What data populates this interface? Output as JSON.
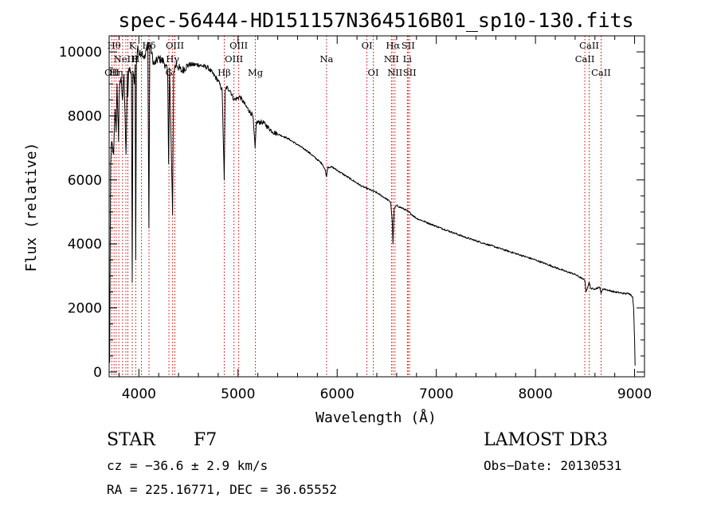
{
  "chart_data": {
    "type": "line",
    "title": "spec-56444-HD151157N364516B01_sp10-130.fits",
    "xlabel": "Wavelength (Å)",
    "ylabel": "Flux (relative)",
    "xlim": [
      3700,
      9100
    ],
    "ylim": [
      -150,
      10500
    ],
    "x_ticks": [
      4000,
      5000,
      6000,
      7000,
      8000,
      9000
    ],
    "y_ticks": [
      0,
      2000,
      4000,
      6000,
      8000,
      10000
    ],
    "series": [
      {
        "name": "flux",
        "x": [
          3700,
          3705,
          3715,
          3725,
          3735,
          3745,
          3760,
          3770,
          3780,
          3795,
          3800,
          3810,
          3820,
          3835,
          3850,
          3870,
          3885,
          3889,
          3895,
          3910,
          3925,
          3933,
          3940,
          3955,
          3962,
          3968,
          3975,
          3990,
          4000,
          4030,
          4060,
          4090,
          4101,
          4110,
          4150,
          4200,
          4250,
          4290,
          4300,
          4310,
          4340,
          4350,
          4360,
          4380,
          4430,
          4500,
          4600,
          4700,
          4800,
          4840,
          4861,
          4870,
          4880,
          4920,
          4960,
          5020,
          5080,
          5150,
          5172,
          5185,
          5250,
          5350,
          5500,
          5700,
          5850,
          5880,
          5893,
          5905,
          5950,
          6100,
          6250,
          6400,
          6500,
          6540,
          6556,
          6563,
          6575,
          6600,
          6700,
          6800,
          7000,
          7300,
          7600,
          8000,
          8300,
          8400,
          8480,
          8500,
          8510,
          8542,
          8560,
          8600,
          8650,
          8662,
          8680,
          8800,
          8900,
          8950,
          8980,
          8990,
          9000,
          9005
        ],
        "y": [
          2900,
          300,
          6500,
          7200,
          7000,
          6800,
          8200,
          7500,
          9000,
          7200,
          8400,
          9100,
          9200,
          8500,
          9300,
          6800,
          9400,
          8600,
          9300,
          9500,
          9200,
          2800,
          9400,
          9000,
          9600,
          3500,
          9600,
          10200,
          9900,
          10000,
          9800,
          10300,
          4500,
          10300,
          9600,
          9800,
          9700,
          9400,
          6500,
          9500,
          4900,
          9300,
          9500,
          9600,
          9400,
          9600,
          9600,
          9500,
          9100,
          8800,
          6000,
          8700,
          8900,
          8800,
          8500,
          8600,
          8300,
          8000,
          7000,
          7800,
          7800,
          7500,
          7300,
          6900,
          6500,
          6300,
          6100,
          6400,
          6400,
          6100,
          5800,
          5600,
          5400,
          5300,
          4700,
          4000,
          5100,
          5200,
          5050,
          4800,
          4550,
          4200,
          3900,
          3500,
          3150,
          3050,
          2900,
          2850,
          2500,
          2800,
          2600,
          2600,
          2650,
          2450,
          2600,
          2500,
          2450,
          2450,
          2350,
          2000,
          1000,
          200
        ]
      }
    ],
    "line_markers": [
      {
        "x": 3727,
        "label": "OII",
        "row": 3
      },
      {
        "x": 3750,
        "label": "Hθ",
        "row": 1
      },
      {
        "x": 3771,
        "label": "Hη",
        "row": 3
      },
      {
        "x": 3798,
        "label": "",
        "row": 0
      },
      {
        "x": 3835,
        "label": "",
        "row": 0
      },
      {
        "x": 3869,
        "label": "NeIII",
        "row": 2
      },
      {
        "x": 3889,
        "label": "",
        "row": 0
      },
      {
        "x": 3933,
        "label": "K",
        "row": 1
      },
      {
        "x": 3968,
        "label": "H",
        "row": 2
      },
      {
        "x": 4026,
        "label": "",
        "row": 0
      },
      {
        "x": 4102,
        "label": "Hδ",
        "row": 1
      },
      {
        "x": 4303,
        "label": "G",
        "row": 3
      },
      {
        "x": 4340,
        "label": "Hγ",
        "row": 2
      },
      {
        "x": 4363,
        "label": "OIII",
        "row": 1
      },
      {
        "x": 4861,
        "label": "Hβ",
        "row": 3
      },
      {
        "x": 4959,
        "label": "OIII",
        "row": 2
      },
      {
        "x": 5007,
        "label": "OIII",
        "row": 1
      },
      {
        "x": 5175,
        "label": "Mg",
        "row": 3
      },
      {
        "x": 5893,
        "label": "Na",
        "row": 2
      },
      {
        "x": 6300,
        "label": "OI",
        "row": 1
      },
      {
        "x": 6364,
        "label": "OI",
        "row": 3
      },
      {
        "x": 6548,
        "label": "NII",
        "row": 2
      },
      {
        "x": 6563,
        "label": "Hα",
        "row": 1
      },
      {
        "x": 6583,
        "label": "NII",
        "row": 3
      },
      {
        "x": 6708,
        "label": "Li",
        "row": 2
      },
      {
        "x": 6716,
        "label": "SII",
        "row": 1
      },
      {
        "x": 6731,
        "label": "SII",
        "row": 3
      },
      {
        "x": 8498,
        "label": "CaII",
        "row": 2
      },
      {
        "x": 8542,
        "label": "CaII",
        "row": 1
      },
      {
        "x": 8662,
        "label": "CaII",
        "row": 3
      }
    ]
  },
  "footer": {
    "object_type": "STAR",
    "subclass": "F7",
    "survey": "LAMOST DR3",
    "cz": "cz = −36.6 ± 2.9 km/s",
    "obs_date": "Obs−Date: 20130531",
    "radec": "RA = 225.16771, DEC =  36.65552"
  },
  "colors": {
    "line": "#000000",
    "marker": "#cc0000",
    "background": "#ffffff"
  }
}
